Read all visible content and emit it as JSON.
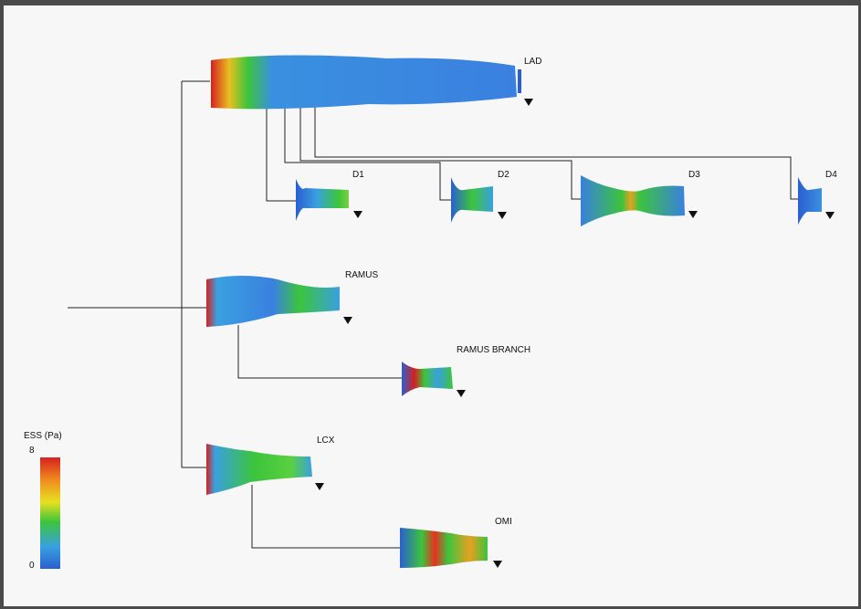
{
  "figure": {
    "legend": {
      "title": "ESS (Pa)",
      "max_label": "8",
      "min_label": "0",
      "stops": [
        "#d62020",
        "#f08a1e",
        "#e8e020",
        "#3cc43c",
        "#3aa0e0",
        "#2a5fd0"
      ]
    },
    "vessels": [
      {
        "id": "lad",
        "label": "LAD"
      },
      {
        "id": "d1",
        "label": "D1"
      },
      {
        "id": "d2",
        "label": "D2"
      },
      {
        "id": "d3",
        "label": "D3"
      },
      {
        "id": "d4",
        "label": "D4"
      },
      {
        "id": "ramus",
        "label": "RAMUS"
      },
      {
        "id": "ramus-branch",
        "label": "RAMUS BRANCH"
      },
      {
        "id": "lcx",
        "label": "LCX"
      },
      {
        "id": "om1",
        "label": "OMI"
      }
    ]
  }
}
